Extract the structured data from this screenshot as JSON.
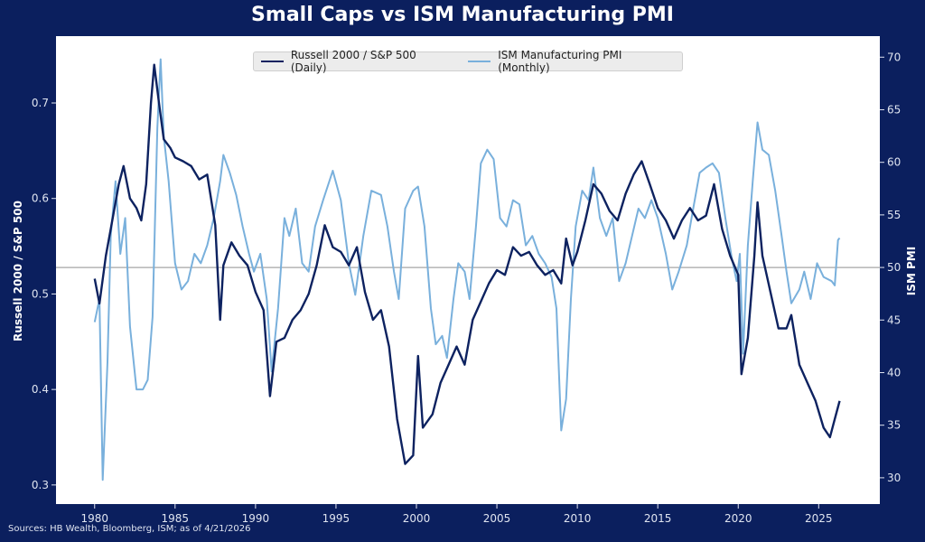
{
  "chart_data": {
    "type": "line",
    "title": "Small Caps vs ISM Manufacturing PMI",
    "source": "Sources: HB Wealth, Bloomberg, ISM; as of 4/21/2026",
    "x_ticks": [
      "1980",
      "1985",
      "1990",
      "1995",
      "2000",
      "2005",
      "2010",
      "2015",
      "2020",
      "2025"
    ],
    "xlim": [
      1977.6,
      2028.8
    ],
    "left_axis": {
      "label": "Russell 2000 / S&P 500",
      "ylim": [
        0.28,
        0.77
      ],
      "ticks": [
        "0.3",
        "0.4",
        "0.5",
        "0.6",
        "0.7"
      ]
    },
    "right_axis": {
      "label": "ISM PMI",
      "ylim": [
        27.5,
        72.0
      ],
      "ticks": [
        "30",
        "35",
        "40",
        "45",
        "50",
        "55",
        "60",
        "65",
        "70"
      ]
    },
    "reference_line": {
      "axis": "right",
      "value": 50,
      "color": "#a6a6a6"
    },
    "grid": false,
    "legend": {
      "placement": "top-center"
    },
    "series": [
      {
        "name": "Russell 2000 / S&P 500 (Daily)",
        "axis": "left",
        "color": "#0d2260",
        "x": [
          1980.0,
          1980.3,
          1980.7,
          1981.0,
          1981.5,
          1981.8,
          1982.2,
          1982.6,
          1982.9,
          1983.2,
          1983.5,
          1983.7,
          1984.0,
          1984.3,
          1984.7,
          1985.0,
          1985.5,
          1986.0,
          1986.5,
          1987.0,
          1987.5,
          1987.8,
          1988.0,
          1988.5,
          1989.0,
          1989.5,
          1990.0,
          1990.5,
          1990.9,
          1991.3,
          1991.8,
          1992.3,
          1992.8,
          1993.3,
          1993.8,
          1994.3,
          1994.8,
          1995.3,
          1995.8,
          1996.3,
          1996.8,
          1997.3,
          1997.8,
          1998.3,
          1998.8,
          1999.3,
          1999.8,
          2000.1,
          2000.4,
          2001.0,
          2001.5,
          2002.0,
          2002.5,
          2003.0,
          2003.5,
          2004.0,
          2004.5,
          2005.0,
          2005.5,
          2006.0,
          2006.5,
          2007.0,
          2007.5,
          2008.0,
          2008.5,
          2009.0,
          2009.3,
          2009.7,
          2010.0,
          2010.5,
          2011.0,
          2011.5,
          2012.0,
          2012.5,
          2013.0,
          2013.5,
          2014.0,
          2014.5,
          2015.0,
          2015.5,
          2016.0,
          2016.5,
          2017.0,
          2017.5,
          2018.0,
          2018.5,
          2019.0,
          2019.5,
          2020.0,
          2020.2,
          2020.6,
          2021.0,
          2021.2,
          2021.5,
          2022.0,
          2022.5,
          2023.0,
          2023.3,
          2023.8,
          2024.3,
          2024.8,
          2025.3,
          2025.7,
          2026.0,
          2026.3
        ],
        "y": [
          0.516,
          0.49,
          0.54,
          0.568,
          0.615,
          0.634,
          0.6,
          0.59,
          0.577,
          0.615,
          0.7,
          0.74,
          0.7,
          0.662,
          0.653,
          0.643,
          0.639,
          0.634,
          0.62,
          0.625,
          0.572,
          0.473,
          0.53,
          0.554,
          0.54,
          0.53,
          0.502,
          0.483,
          0.393,
          0.45,
          0.454,
          0.473,
          0.483,
          0.5,
          0.53,
          0.572,
          0.549,
          0.544,
          0.53,
          0.549,
          0.502,
          0.473,
          0.483,
          0.445,
          0.369,
          0.322,
          0.331,
          0.435,
          0.36,
          0.374,
          0.407,
          0.426,
          0.445,
          0.426,
          0.473,
          0.492,
          0.511,
          0.525,
          0.52,
          0.549,
          0.54,
          0.544,
          0.53,
          0.52,
          0.525,
          0.511,
          0.558,
          0.53,
          0.544,
          0.577,
          0.615,
          0.605,
          0.587,
          0.577,
          0.605,
          0.625,
          0.639,
          0.615,
          0.59,
          0.577,
          0.558,
          0.577,
          0.59,
          0.577,
          0.582,
          0.615,
          0.568,
          0.54,
          0.52,
          0.416,
          0.454,
          0.54,
          0.596,
          0.54,
          0.502,
          0.464,
          0.464,
          0.478,
          0.426,
          0.407,
          0.388,
          0.36,
          0.35,
          0.369,
          0.388
        ]
      },
      {
        "name": "ISM Manufacturing PMI (Monthly)",
        "axis": "right",
        "color": "#79b0dc",
        "x": [
          1980.0,
          1980.3,
          1980.5,
          1980.8,
          1981.0,
          1981.3,
          1981.6,
          1981.9,
          1982.2,
          1982.6,
          1983.0,
          1983.3,
          1983.6,
          1983.9,
          1984.1,
          1984.3,
          1984.6,
          1985.0,
          1985.4,
          1985.8,
          1986.2,
          1986.6,
          1987.0,
          1987.4,
          1987.8,
          1988.0,
          1988.4,
          1988.8,
          1989.2,
          1989.6,
          1989.9,
          1990.3,
          1990.7,
          1991.0,
          1991.4,
          1991.8,
          1992.1,
          1992.5,
          1992.9,
          1993.3,
          1993.7,
          1994.2,
          1994.8,
          1995.3,
          1995.8,
          1996.2,
          1996.7,
          1997.2,
          1997.8,
          1998.2,
          1998.6,
          1998.9,
          1999.3,
          1999.8,
          2000.1,
          2000.5,
          2000.9,
          2001.2,
          2001.6,
          2001.9,
          2002.3,
          2002.6,
          2003.0,
          2003.3,
          2003.7,
          2004.0,
          2004.4,
          2004.8,
          2005.2,
          2005.6,
          2006.0,
          2006.4,
          2006.8,
          2007.2,
          2007.6,
          2008.0,
          2008.4,
          2008.7,
          2008.9,
          2009.0,
          2009.3,
          2009.6,
          2009.9,
          2010.3,
          2010.7,
          2011.0,
          2011.4,
          2011.8,
          2012.2,
          2012.6,
          2013.0,
          2013.4,
          2013.8,
          2014.2,
          2014.6,
          2015.0,
          2015.5,
          2015.9,
          2016.3,
          2016.8,
          2017.2,
          2017.6,
          2018.0,
          2018.4,
          2018.8,
          2019.2,
          2019.6,
          2019.9,
          2020.1,
          2020.3,
          2020.6,
          2020.9,
          2021.2,
          2021.5,
          2021.9,
          2022.3,
          2022.7,
          2023.0,
          2023.3,
          2023.8,
          2024.1,
          2024.5,
          2024.9,
          2025.3,
          2025.8,
          2026.0,
          2026.2,
          2026.3
        ],
        "y": [
          44.8,
          47,
          29.8,
          41,
          53,
          58.2,
          51.3,
          54.7,
          44.4,
          38.4,
          38.4,
          39.3,
          45.3,
          63.3,
          69.8,
          62.5,
          58.2,
          50.4,
          47.9,
          48.7,
          51.3,
          50.4,
          52.1,
          54.7,
          58.2,
          60.7,
          59,
          56.9,
          53.9,
          51.3,
          49.6,
          51.3,
          47,
          40.1,
          46.1,
          54.7,
          53,
          55.6,
          50.4,
          49.6,
          53.9,
          56.4,
          59.2,
          56.4,
          50.4,
          47.4,
          53,
          57.3,
          56.9,
          53.9,
          49.6,
          47,
          55.6,
          57.3,
          57.7,
          53.9,
          46.1,
          42.7,
          43.5,
          41.4,
          47,
          50.4,
          49.6,
          47,
          53.9,
          59.9,
          61.2,
          60.3,
          54.7,
          53.9,
          56.4,
          56,
          52.1,
          53,
          51.3,
          50.4,
          49.1,
          46.1,
          38.4,
          34.5,
          37.5,
          47,
          53.9,
          57.3,
          56.4,
          59.5,
          54.7,
          53,
          54.7,
          48.7,
          50.4,
          53,
          55.6,
          54.7,
          56.4,
          54.7,
          51.3,
          47.9,
          49.6,
          52.1,
          55.6,
          59,
          59.5,
          59.9,
          59,
          54.7,
          50.9,
          48.7,
          51.3,
          41.8,
          52.1,
          58.2,
          63.8,
          61.2,
          60.7,
          57.3,
          53,
          49.6,
          46.6,
          47.9,
          49.6,
          47,
          50.4,
          49.1,
          48.7,
          48.3,
          52.6,
          52.8
        ]
      }
    ]
  }
}
